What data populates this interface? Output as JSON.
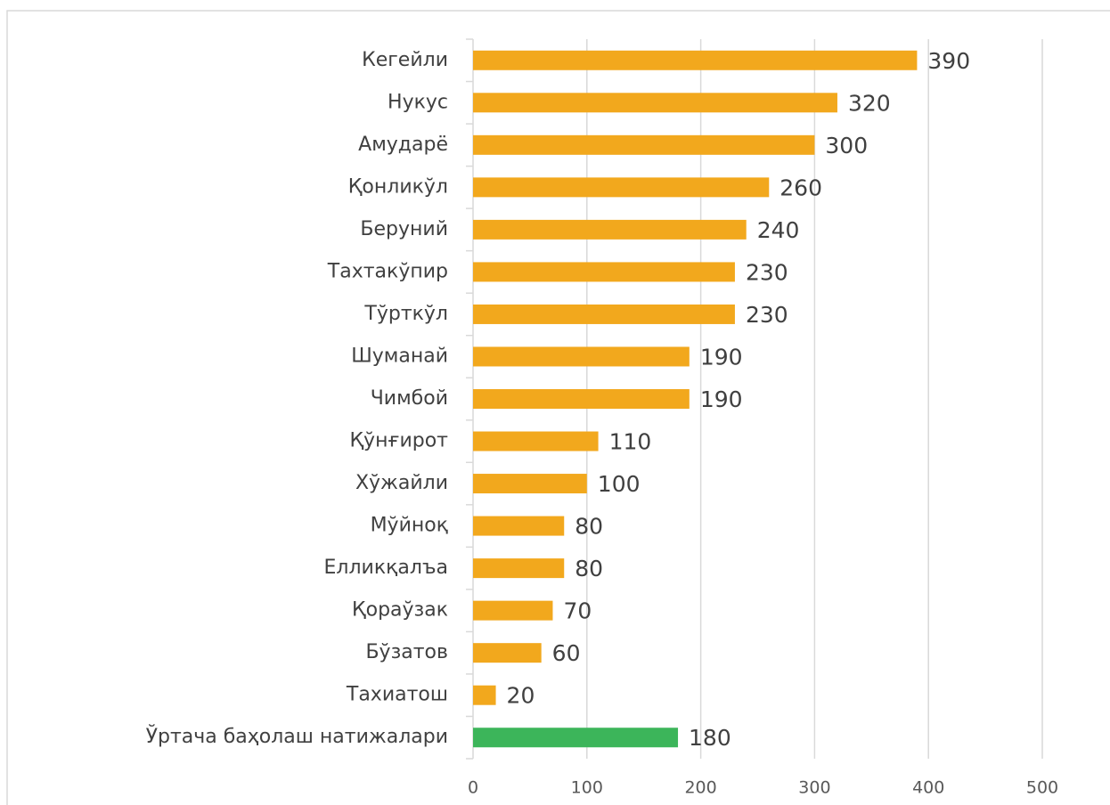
{
  "chart_data": {
    "type": "bar",
    "orientation": "horizontal",
    "categories": [
      "Кегейли",
      "Нукус",
      "Амударё",
      "Қонликўл",
      "Беруний",
      "Тахтакўпир",
      "Тўрткўл",
      "Шуманай",
      "Чимбой",
      "Қўнғирот",
      "Хўжайли",
      "Мўйноқ",
      "Елликқалъа",
      "Қораўзак",
      "Бўзатов",
      "Тахиатош",
      "Ўртача баҳолаш натижалари"
    ],
    "values": [
      390,
      320,
      300,
      260,
      240,
      230,
      230,
      190,
      190,
      110,
      100,
      80,
      80,
      70,
      60,
      20,
      180
    ],
    "colors": [
      "#f2a81d",
      "#f2a81d",
      "#f2a81d",
      "#f2a81d",
      "#f2a81d",
      "#f2a81d",
      "#f2a81d",
      "#f2a81d",
      "#f2a81d",
      "#f2a81d",
      "#f2a81d",
      "#f2a81d",
      "#f2a81d",
      "#f2a81d",
      "#f2a81d",
      "#f2a81d",
      "#3cb55a"
    ],
    "xlim": [
      0,
      500
    ],
    "xticks": [
      0,
      100,
      200,
      300,
      400,
      500
    ],
    "grid": true
  }
}
